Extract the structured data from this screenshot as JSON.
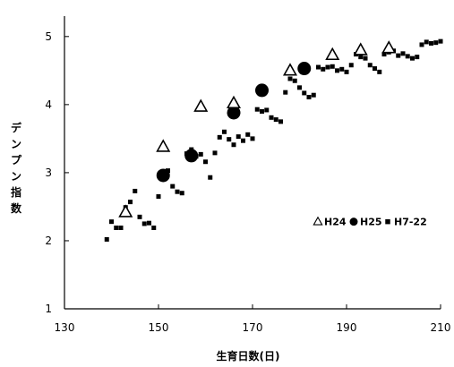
{
  "chart_data": {
    "type": "scatter",
    "title": "",
    "xlabel": "生育日数(日)",
    "ylabel": "デンプン指数",
    "xlim": [
      130,
      210
    ],
    "ylim": [
      1,
      5.3
    ],
    "x_ticks": [
      130,
      150,
      170,
      190,
      210
    ],
    "y_ticks": [
      1,
      2,
      3,
      4,
      5
    ],
    "grid": false,
    "legend_position": "middle-right",
    "series": [
      {
        "name": "H24",
        "marker": "open-triangle",
        "color": "#000000",
        "points": [
          [
            143,
            2.42
          ],
          [
            151,
            3.38
          ],
          [
            159,
            3.97
          ],
          [
            166,
            4.02
          ],
          [
            178,
            4.5
          ],
          [
            187,
            4.73
          ],
          [
            193,
            4.8
          ],
          [
            199,
            4.83
          ]
        ]
      },
      {
        "name": "H25",
        "marker": "filled-circle",
        "color": "#000000",
        "points": [
          [
            151,
            2.96
          ],
          [
            157,
            3.25
          ],
          [
            166,
            3.88
          ],
          [
            172,
            4.21
          ],
          [
            181,
            4.53
          ]
        ]
      },
      {
        "name": "H7-22",
        "marker": "filled-square",
        "color": "#000000",
        "points": [
          [
            139,
            2.02
          ],
          [
            140,
            2.28
          ],
          [
            141,
            2.19
          ],
          [
            142,
            2.19
          ],
          [
            143,
            2.49
          ],
          [
            144,
            2.57
          ],
          [
            145,
            2.73
          ],
          [
            146,
            2.35
          ],
          [
            147,
            2.25
          ],
          [
            148,
            2.26
          ],
          [
            149,
            2.19
          ],
          [
            150,
            2.65
          ],
          [
            151,
            2.96
          ],
          [
            152,
            3.03
          ],
          [
            153,
            2.8
          ],
          [
            154,
            2.72
          ],
          [
            155,
            2.7
          ],
          [
            156,
            3.28
          ],
          [
            157,
            3.34
          ],
          [
            158,
            3.24
          ],
          [
            159,
            3.27
          ],
          [
            160,
            3.16
          ],
          [
            161,
            2.93
          ],
          [
            162,
            3.29
          ],
          [
            163,
            3.52
          ],
          [
            164,
            3.6
          ],
          [
            165,
            3.49
          ],
          [
            166,
            3.41
          ],
          [
            167,
            3.53
          ],
          [
            168,
            3.47
          ],
          [
            169,
            3.56
          ],
          [
            170,
            3.5
          ],
          [
            171,
            3.93
          ],
          [
            172,
            3.9
          ],
          [
            173,
            3.92
          ],
          [
            174,
            3.81
          ],
          [
            175,
            3.78
          ],
          [
            176,
            3.75
          ],
          [
            177,
            4.18
          ],
          [
            178,
            4.38
          ],
          [
            179,
            4.35
          ],
          [
            180,
            4.25
          ],
          [
            181,
            4.17
          ],
          [
            182,
            4.11
          ],
          [
            183,
            4.14
          ],
          [
            184,
            4.55
          ],
          [
            185,
            4.52
          ],
          [
            186,
            4.55
          ],
          [
            187,
            4.56
          ],
          [
            188,
            4.5
          ],
          [
            189,
            4.52
          ],
          [
            190,
            4.48
          ],
          [
            191,
            4.58
          ],
          [
            192,
            4.74
          ],
          [
            193,
            4.7
          ],
          [
            194,
            4.68
          ],
          [
            195,
            4.58
          ],
          [
            196,
            4.53
          ],
          [
            197,
            4.48
          ],
          [
            198,
            4.74
          ],
          [
            199,
            4.77
          ],
          [
            200,
            4.79
          ],
          [
            201,
            4.72
          ],
          [
            202,
            4.75
          ],
          [
            203,
            4.71
          ],
          [
            204,
            4.68
          ],
          [
            205,
            4.7
          ],
          [
            206,
            4.88
          ],
          [
            207,
            4.92
          ],
          [
            208,
            4.9
          ],
          [
            209,
            4.91
          ],
          [
            210,
            4.93
          ]
        ]
      }
    ]
  }
}
